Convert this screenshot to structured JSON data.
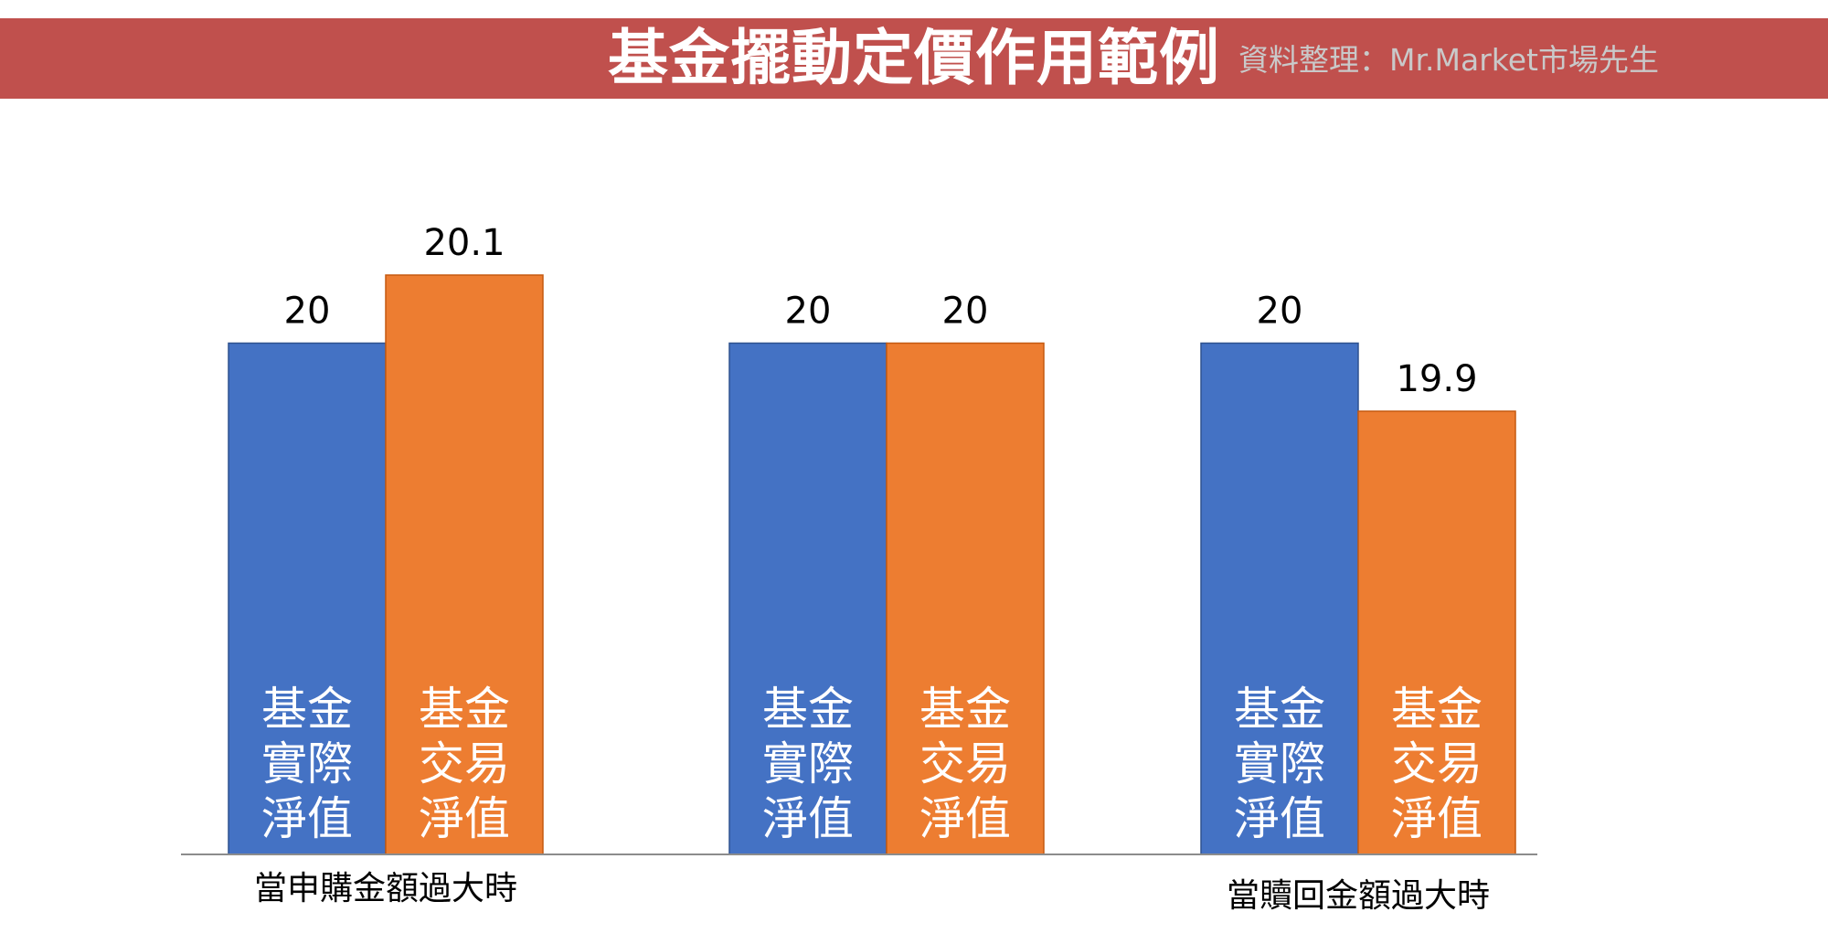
{
  "title": "基金擺動定價作用範例",
  "source": "資料整理：Mr.Market市場先生",
  "colors": {
    "banner": "#C0504D",
    "actual": "#4472C4",
    "trading": "#ED7D31"
  },
  "chart_data": {
    "type": "bar",
    "title": "基金擺動定價作用範例",
    "categories": [
      "當申購金額過大時",
      "",
      "當贖回金額過大時"
    ],
    "series": [
      {
        "name": "基金實際淨值",
        "label_lines": [
          "基金",
          "實際",
          "淨值"
        ],
        "values": [
          20,
          20,
          20
        ]
      },
      {
        "name": "基金交易淨值",
        "label_lines": [
          "基金",
          "交易",
          "淨值"
        ],
        "values": [
          20.1,
          20,
          19.9
        ]
      }
    ],
    "data_labels": [
      [
        "20",
        "20",
        "20"
      ],
      [
        "20.1",
        "20",
        "19.9"
      ]
    ],
    "legend": "none",
    "grid": false
  }
}
